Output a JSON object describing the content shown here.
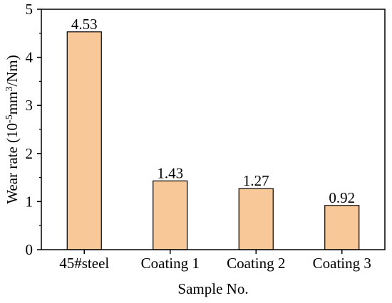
{
  "chart_data": {
    "type": "bar",
    "categories": [
      "45#steel",
      "Coating 1",
      "Coating 2",
      "Coating 3"
    ],
    "values": [
      4.53,
      1.43,
      1.27,
      0.92
    ],
    "data_labels": [
      "4.53",
      "1.43",
      "1.27",
      "0.92"
    ],
    "xlabel": "Sample No.",
    "ylabel": {
      "prefix": "Wear rate (10",
      "exp1": "-5",
      "mid": "mm",
      "exp2": "3",
      "suffix": "/Nm)"
    },
    "ylim": [
      0,
      5
    ],
    "yticks": [
      0,
      1,
      2,
      3,
      4,
      5
    ],
    "ytick_labels": [
      "0",
      "1",
      "2",
      "3",
      "4",
      "5"
    ],
    "grid": false,
    "legend": "none",
    "colors": {
      "bar_fill": "#f9c898",
      "bar_stroke": "#000000",
      "axis": "#000000"
    }
  }
}
